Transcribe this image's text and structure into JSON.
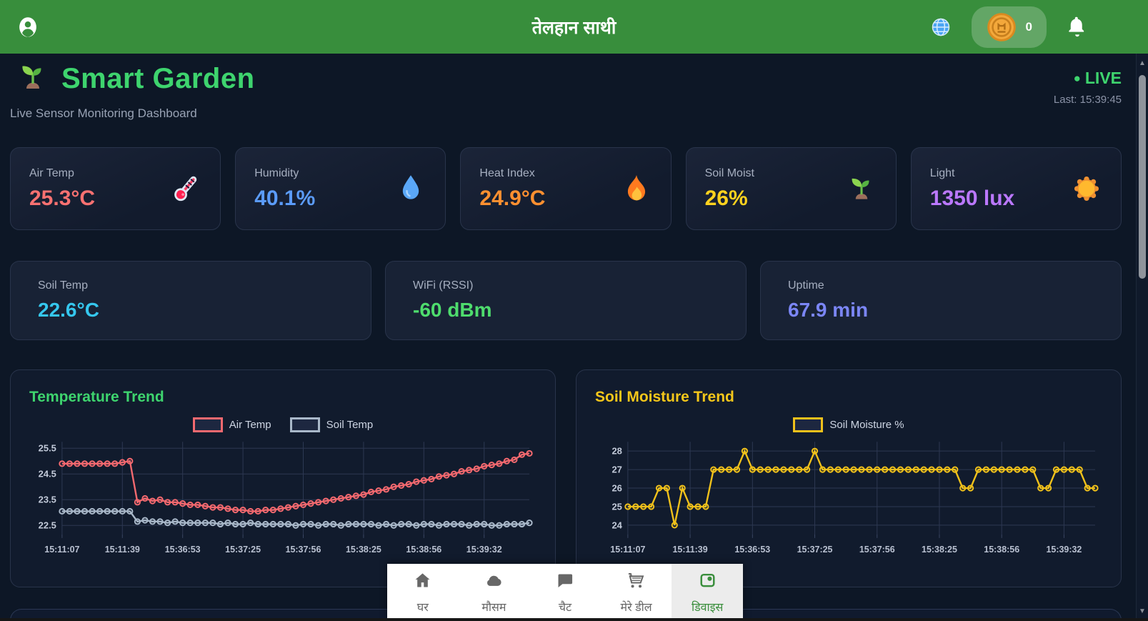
{
  "header": {
    "title": "तेलहान साथी",
    "coin_count": "0",
    "icons": {
      "left": "user-circle",
      "globe": "globe",
      "coin": "coin",
      "bell": "bell"
    }
  },
  "page": {
    "title": "Smart Garden",
    "title_icon": "seedling",
    "subtitle": "Live Sensor Monitoring Dashboard",
    "live_dot": "●",
    "live_label": "LIVE",
    "last_updated": "Last: 15:39:45",
    "accent_green": "#3ed46e"
  },
  "sensors": [
    {
      "label": "Air Temp",
      "value": "25.3°C",
      "color": "#f87171",
      "icon": "thermometer"
    },
    {
      "label": "Humidity",
      "value": "40.1%",
      "color": "#5b9bf8",
      "icon": "droplet"
    },
    {
      "label": "Heat Index",
      "value": "24.9°C",
      "color": "#ff9030",
      "icon": "flame"
    },
    {
      "label": "Soil Moist",
      "value": "26%",
      "color": "#ffd21e",
      "icon": "seedling"
    },
    {
      "label": "Light",
      "value": "1350 lux",
      "color": "#bb78ff",
      "icon": "sun"
    }
  ],
  "stats": [
    {
      "label": "Soil Temp",
      "value": "22.6°C",
      "color": "#35c7ee"
    },
    {
      "label": "WiFi (RSSI)",
      "value": "-60 dBm",
      "color": "#4edc6d"
    },
    {
      "label": "Uptime",
      "value": "67.9 min",
      "color": "#7b86f6"
    }
  ],
  "chart_data": [
    {
      "type": "line",
      "title": "Temperature Trend",
      "title_color": "#3ed46e",
      "legend_position": "top-center",
      "grid": true,
      "x_labels": [
        "15:11:07",
        "15:11:39",
        "15:36:53",
        "15:37:25",
        "15:37:56",
        "15:38:25",
        "15:38:56",
        "15:39:32"
      ],
      "y_ticks": [
        25.5,
        24.5,
        23.5,
        22.5
      ],
      "ylim": [
        22.15,
        25.75
      ],
      "series": [
        {
          "name": "Air Temp",
          "color": "#f3696f",
          "values": [
            24.9,
            24.9,
            24.9,
            24.9,
            24.9,
            24.9,
            24.9,
            24.9,
            24.95,
            25.0,
            23.4,
            23.55,
            23.45,
            23.5,
            23.4,
            23.4,
            23.35,
            23.3,
            23.3,
            23.25,
            23.2,
            23.2,
            23.15,
            23.1,
            23.1,
            23.05,
            23.05,
            23.1,
            23.1,
            23.15,
            23.2,
            23.25,
            23.3,
            23.35,
            23.4,
            23.45,
            23.5,
            23.55,
            23.6,
            23.65,
            23.7,
            23.8,
            23.85,
            23.9,
            24.0,
            24.05,
            24.1,
            24.2,
            24.25,
            24.3,
            24.4,
            24.45,
            24.5,
            24.6,
            24.65,
            24.7,
            24.8,
            24.85,
            24.9,
            25.0,
            25.05,
            25.25,
            25.3
          ]
        },
        {
          "name": "Soil Temp",
          "color": "#a9b8c9",
          "values": [
            23.05,
            23.05,
            23.05,
            23.05,
            23.05,
            23.05,
            23.05,
            23.05,
            23.05,
            23.05,
            22.65,
            22.7,
            22.65,
            22.65,
            22.6,
            22.65,
            22.6,
            22.6,
            22.6,
            22.6,
            22.6,
            22.55,
            22.6,
            22.55,
            22.55,
            22.6,
            22.55,
            22.55,
            22.55,
            22.55,
            22.55,
            22.5,
            22.55,
            22.55,
            22.5,
            22.55,
            22.55,
            22.5,
            22.55,
            22.55,
            22.55,
            22.55,
            22.5,
            22.55,
            22.5,
            22.55,
            22.55,
            22.5,
            22.55,
            22.55,
            22.5,
            22.55,
            22.55,
            22.55,
            22.5,
            22.55,
            22.55,
            22.5,
            22.5,
            22.55,
            22.55,
            22.55,
            22.6
          ]
        }
      ]
    },
    {
      "type": "line",
      "title": "Soil Moisture Trend",
      "title_color": "#f5c71a",
      "legend_position": "top-center",
      "grid": true,
      "x_labels": [
        "15:11:07",
        "15:11:39",
        "15:36:53",
        "15:37:25",
        "15:37:56",
        "15:38:25",
        "15:38:56",
        "15:39:32"
      ],
      "y_ticks": [
        28,
        27,
        26,
        25,
        24
      ],
      "ylim": [
        23.5,
        28.5
      ],
      "series": [
        {
          "name": "Soil Moisture %",
          "color": "#f0c11b",
          "values": [
            25,
            25,
            25,
            25,
            26,
            26,
            24,
            26,
            25,
            25,
            25,
            27,
            27,
            27,
            27,
            28,
            27,
            27,
            27,
            27,
            27,
            27,
            27,
            27,
            28,
            27,
            27,
            27,
            27,
            27,
            27,
            27,
            27,
            27,
            27,
            27,
            27,
            27,
            27,
            27,
            27,
            27,
            27,
            26,
            26,
            27,
            27,
            27,
            27,
            27,
            27,
            27,
            27,
            26,
            26,
            27,
            27,
            27,
            27,
            26,
            26
          ]
        }
      ]
    }
  ],
  "bottom_nav": {
    "items": [
      {
        "label": "घर",
        "icon": "home",
        "active": false
      },
      {
        "label": "मौसम",
        "icon": "cloud",
        "active": false
      },
      {
        "label": "चैट",
        "icon": "chat",
        "active": false
      },
      {
        "label": "मेरे डील",
        "icon": "cart",
        "active": false
      },
      {
        "label": "डिवाइस",
        "icon": "device",
        "active": true
      }
    ],
    "active_color": "#3a8e3c"
  },
  "scrollbar": {
    "up_glyph": "▲",
    "down_glyph": "▼"
  }
}
